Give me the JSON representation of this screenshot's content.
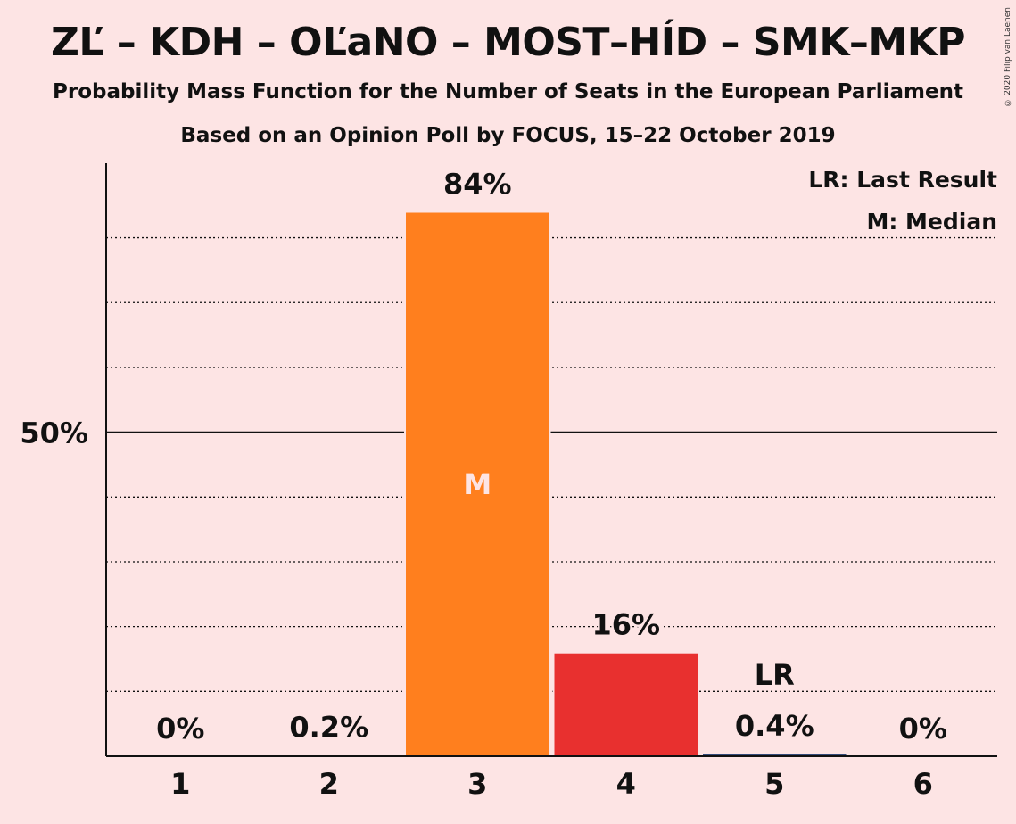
{
  "title": "ZĽ – KDH – OĽaNO – MOST–HÍD – SMK–MKP",
  "subtitle": "Probability Mass Function for the Number of Seats in the European Parliament",
  "subtitle2": "Based on an Opinion Poll by FOCUS, 15–22 October 2019",
  "copyright": "© 2020 Filip van Laenen",
  "legend": {
    "lr": "LR: Last Result",
    "m": "M: Median"
  },
  "chart_data": {
    "type": "bar",
    "categories": [
      "1",
      "2",
      "3",
      "4",
      "5",
      "6"
    ],
    "values": [
      0,
      0.2,
      84,
      16,
      0.4,
      0
    ],
    "value_labels": [
      "0%",
      "0.2%",
      "84%",
      "16%",
      "0.4%",
      "0%"
    ],
    "bar_colors": [
      "#1f3a6e",
      "#1f3a6e",
      "#ff7f1e",
      "#e8302f",
      "#1f3a6e",
      "#1f3a6e"
    ],
    "ylim": [
      0,
      91.5
    ],
    "yticks": [
      {
        "value": 50,
        "label": "50%"
      }
    ],
    "gridlines": [
      10,
      20,
      30,
      40,
      60,
      70,
      80
    ],
    "median_category": "3",
    "median_label": "M",
    "last_result_category": "5",
    "last_result_label": "LR",
    "legend_position": "top-right",
    "grid": true
  }
}
